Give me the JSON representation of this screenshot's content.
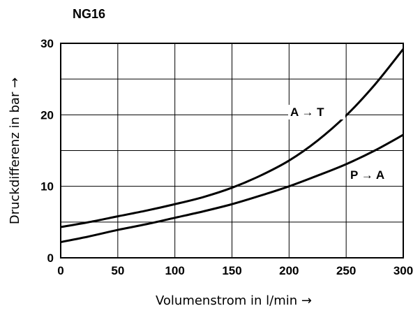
{
  "chart_data": {
    "type": "line",
    "title": "NG16",
    "xlabel": "Volumenstrom in l/min →",
    "ylabel": "Druckdifferenz in bar →",
    "xlim": [
      0,
      300
    ],
    "ylim": [
      0,
      30
    ],
    "x_ticks": [
      0,
      50,
      100,
      150,
      200,
      250,
      300
    ],
    "y_ticks": [
      0,
      10,
      20,
      30
    ],
    "grid": true,
    "series": [
      {
        "name": "A → T",
        "x": [
          0,
          25,
          50,
          75,
          100,
          125,
          150,
          175,
          200,
          225,
          250,
          275,
          300
        ],
        "y": [
          4.3,
          5.0,
          5.8,
          6.6,
          7.5,
          8.5,
          9.8,
          11.5,
          13.6,
          16.4,
          19.9,
          24.2,
          29.2
        ]
      },
      {
        "name": "P → A",
        "x": [
          0,
          25,
          50,
          75,
          100,
          125,
          150,
          175,
          200,
          225,
          250,
          275,
          300
        ],
        "y": [
          2.2,
          3.0,
          3.9,
          4.7,
          5.6,
          6.5,
          7.5,
          8.7,
          10.0,
          11.5,
          13.1,
          15.0,
          17.2
        ]
      }
    ]
  }
}
